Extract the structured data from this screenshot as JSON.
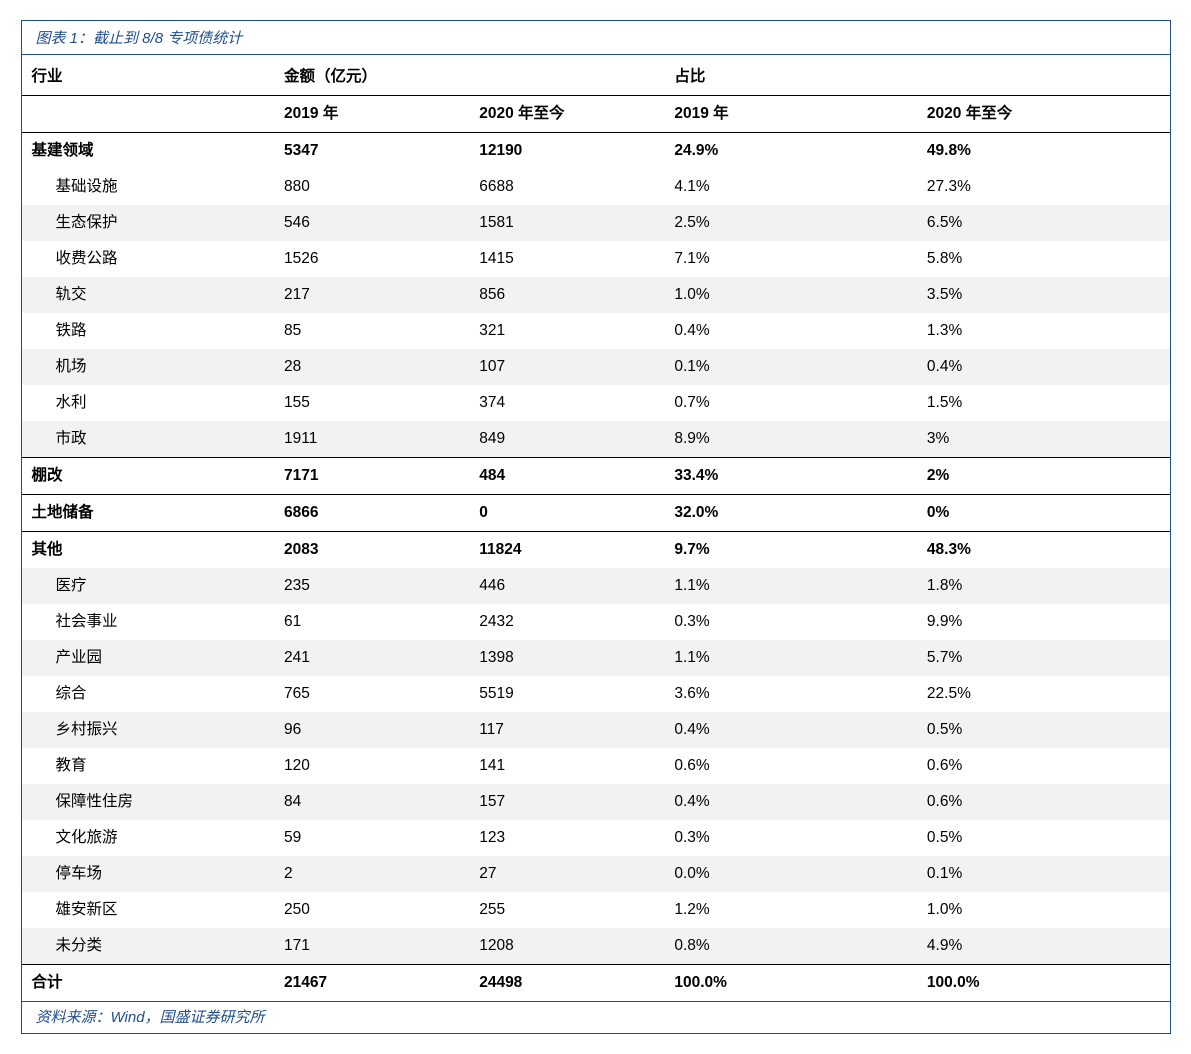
{
  "caption": "图表 1：截止到 8/8 专项债统计",
  "source": "资料来源：Wind，国盛证券研究所",
  "colors": {
    "border": "#1f4e8c",
    "text": "#000000",
    "caption_text": "#1f4e8c",
    "stripe": "#f2f2f2",
    "background": "#ffffff"
  },
  "header": {
    "industry": "行业",
    "amount": "金额（亿元）",
    "ratio": "占比",
    "y2019": "2019 年",
    "y2020": "2020 年至今"
  },
  "rows": [
    {
      "label": "基建领域",
      "a2019": "5347",
      "a2020": "12190",
      "p2019": "24.9%",
      "p2020": "49.8%",
      "bold": true,
      "indent": false,
      "stripe": false,
      "sep": false
    },
    {
      "label": "基础设施",
      "a2019": "880",
      "a2020": "6688",
      "p2019": "4.1%",
      "p2020": "27.3%",
      "bold": false,
      "indent": true,
      "stripe": false,
      "sep": false
    },
    {
      "label": "生态保护",
      "a2019": "546",
      "a2020": "1581",
      "p2019": "2.5%",
      "p2020": "6.5%",
      "bold": false,
      "indent": true,
      "stripe": true,
      "sep": false
    },
    {
      "label": "收费公路",
      "a2019": "1526",
      "a2020": "1415",
      "p2019": "7.1%",
      "p2020": "5.8%",
      "bold": false,
      "indent": true,
      "stripe": false,
      "sep": false
    },
    {
      "label": "轨交",
      "a2019": "217",
      "a2020": "856",
      "p2019": "1.0%",
      "p2020": "3.5%",
      "bold": false,
      "indent": true,
      "stripe": true,
      "sep": false
    },
    {
      "label": "铁路",
      "a2019": "85",
      "a2020": "321",
      "p2019": "0.4%",
      "p2020": "1.3%",
      "bold": false,
      "indent": true,
      "stripe": false,
      "sep": false
    },
    {
      "label": "机场",
      "a2019": "28",
      "a2020": "107",
      "p2019": "0.1%",
      "p2020": "0.4%",
      "bold": false,
      "indent": true,
      "stripe": true,
      "sep": false
    },
    {
      "label": "水利",
      "a2019": "155",
      "a2020": "374",
      "p2019": "0.7%",
      "p2020": "1.5%",
      "bold": false,
      "indent": true,
      "stripe": false,
      "sep": false
    },
    {
      "label": "市政",
      "a2019": "1911",
      "a2020": "849",
      "p2019": "8.9%",
      "p2020": "3%",
      "bold": false,
      "indent": true,
      "stripe": true,
      "sep": false
    },
    {
      "label": "棚改",
      "a2019": "7171",
      "a2020": "484",
      "p2019": "33.4%",
      "p2020": "2%",
      "bold": true,
      "indent": false,
      "stripe": false,
      "sep": true
    },
    {
      "label": "土地储备",
      "a2019": "6866",
      "a2020": "0",
      "p2019": "32.0%",
      "p2020": "0%",
      "bold": true,
      "indent": false,
      "stripe": false,
      "sep": true
    },
    {
      "label": "其他",
      "a2019": "2083",
      "a2020": "11824",
      "p2019": "9.7%",
      "p2020": "48.3%",
      "bold": true,
      "indent": false,
      "stripe": false,
      "sep": true
    },
    {
      "label": "医疗",
      "a2019": "235",
      "a2020": "446",
      "p2019": "1.1%",
      "p2020": "1.8%",
      "bold": false,
      "indent": true,
      "stripe": true,
      "sep": false
    },
    {
      "label": "社会事业",
      "a2019": "61",
      "a2020": "2432",
      "p2019": "0.3%",
      "p2020": "9.9%",
      "bold": false,
      "indent": true,
      "stripe": false,
      "sep": false
    },
    {
      "label": "产业园",
      "a2019": "241",
      "a2020": "1398",
      "p2019": "1.1%",
      "p2020": "5.7%",
      "bold": false,
      "indent": true,
      "stripe": true,
      "sep": false
    },
    {
      "label": "综合",
      "a2019": "765",
      "a2020": "5519",
      "p2019": "3.6%",
      "p2020": "22.5%",
      "bold": false,
      "indent": true,
      "stripe": false,
      "sep": false
    },
    {
      "label": "乡村振兴",
      "a2019": "96",
      "a2020": "117",
      "p2019": "0.4%",
      "p2020": "0.5%",
      "bold": false,
      "indent": true,
      "stripe": true,
      "sep": false
    },
    {
      "label": "教育",
      "a2019": "120",
      "a2020": "141",
      "p2019": "0.6%",
      "p2020": "0.6%",
      "bold": false,
      "indent": true,
      "stripe": false,
      "sep": false
    },
    {
      "label": "保障性住房",
      "a2019": "84",
      "a2020": "157",
      "p2019": "0.4%",
      "p2020": "0.6%",
      "bold": false,
      "indent": true,
      "stripe": true,
      "sep": false
    },
    {
      "label": "文化旅游",
      "a2019": "59",
      "a2020": "123",
      "p2019": "0.3%",
      "p2020": "0.5%",
      "bold": false,
      "indent": true,
      "stripe": false,
      "sep": false
    },
    {
      "label": "停车场",
      "a2019": "2",
      "a2020": "27",
      "p2019": "0.0%",
      "p2020": "0.1%",
      "bold": false,
      "indent": true,
      "stripe": true,
      "sep": false
    },
    {
      "label": "雄安新区",
      "a2019": "250",
      "a2020": "255",
      "p2019": "1.2%",
      "p2020": "1.0%",
      "bold": false,
      "indent": true,
      "stripe": false,
      "sep": false
    },
    {
      "label": "未分类",
      "a2019": "171",
      "a2020": "1208",
      "p2019": "0.8%",
      "p2020": "4.9%",
      "bold": false,
      "indent": true,
      "stripe": true,
      "sep": false
    },
    {
      "label": "合计",
      "a2019": "21467",
      "a2020": "24498",
      "p2019": "100.0%",
      "p2020": "100.0%",
      "bold": true,
      "indent": false,
      "stripe": false,
      "sep": true
    }
  ]
}
